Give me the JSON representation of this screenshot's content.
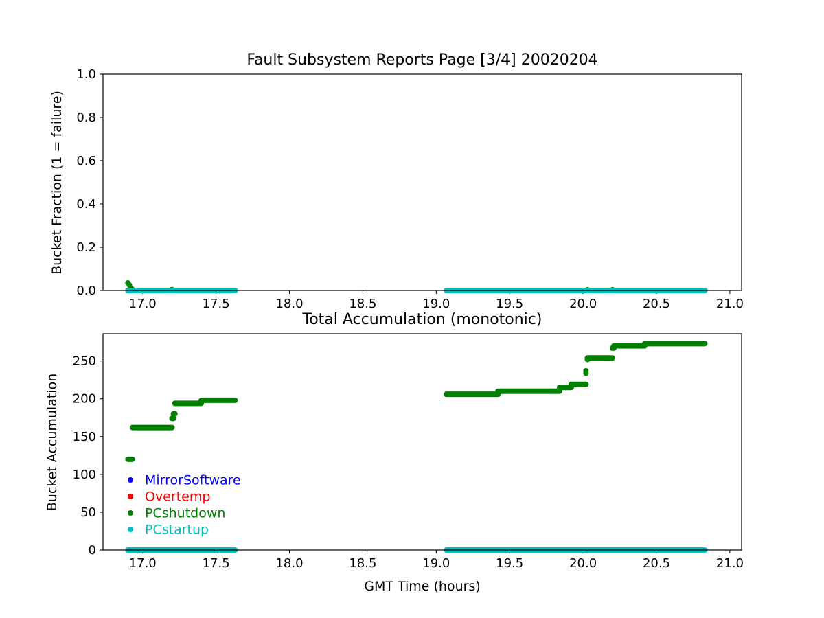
{
  "chart_data": [
    {
      "type": "scatter",
      "title": "Fault Subsystem Reports Page [3/4] 20020204",
      "xlabel": "",
      "ylabel": "Bucket Fraction (1 = failure)",
      "xlim": [
        16.73,
        21.08
      ],
      "ylim": [
        0.0,
        1.0
      ],
      "xticks": [
        17.0,
        17.5,
        18.0,
        18.5,
        19.0,
        19.5,
        20.0,
        20.5,
        21.0
      ],
      "xtick_labels": [
        "17.0",
        "17.5",
        "18.0",
        "18.5",
        "19.0",
        "19.5",
        "20.0",
        "20.5",
        "21.0"
      ],
      "yticks": [
        0.0,
        0.2,
        0.4,
        0.6,
        0.8,
        1.0
      ],
      "ytick_labels": [
        "0.0",
        "0.2",
        "0.4",
        "0.6",
        "0.8",
        "1.0"
      ],
      "grid": false,
      "series": [
        {
          "name": "PCshutdown",
          "color": "#008000",
          "segments": [
            [
              16.9,
              17.63,
              0.0
            ],
            [
              19.07,
              20.83,
              0.0
            ]
          ],
          "points": [
            [
              16.9,
              0.035
            ],
            [
              16.91,
              0.025
            ],
            [
              16.92,
              0.012
            ],
            [
              16.93,
              0.005
            ],
            [
              17.2,
              0.004
            ],
            [
              20.03,
              0.003
            ],
            [
              20.2,
              0.003
            ]
          ]
        },
        {
          "name": "PCstartup",
          "color": "#00bfbf",
          "segments": [
            [
              16.9,
              17.63,
              0.0
            ],
            [
              19.07,
              20.83,
              0.0
            ]
          ],
          "points": []
        }
      ]
    },
    {
      "type": "scatter",
      "title": "Total Accumulation (monotonic)",
      "xlabel": "GMT Time (hours)",
      "ylabel": "Bucket Accumulation",
      "xlim": [
        16.73,
        21.08
      ],
      "ylim": [
        0,
        286
      ],
      "xticks": [
        17.0,
        17.5,
        18.0,
        18.5,
        19.0,
        19.5,
        20.0,
        20.5,
        21.0
      ],
      "xtick_labels": [
        "17.0",
        "17.5",
        "18.0",
        "18.5",
        "19.0",
        "19.5",
        "20.0",
        "20.5",
        "21.0"
      ],
      "yticks": [
        0,
        50,
        100,
        150,
        200,
        250
      ],
      "ytick_labels": [
        "0",
        "50",
        "100",
        "150",
        "200",
        "250"
      ],
      "grid": false,
      "legend": {
        "placement": "center-left",
        "entries": [
          "MirrorSoftware",
          "Overtemp",
          "PCshutdown",
          "PCstartup"
        ]
      },
      "series": [
        {
          "name": "MirrorSoftware",
          "color": "#0000ff",
          "segments": [],
          "points": []
        },
        {
          "name": "Overtemp",
          "color": "#ff0000",
          "segments": [],
          "points": []
        },
        {
          "name": "PCshutdown",
          "color": "#008000",
          "segments": [
            [
              16.9,
              16.93,
              120
            ],
            [
              16.93,
              17.2,
              162
            ],
            [
              17.2,
              17.21,
              174
            ],
            [
              17.21,
              17.22,
              180
            ],
            [
              17.22,
              17.4,
              194
            ],
            [
              17.4,
              17.63,
              198
            ],
            [
              19.07,
              19.42,
              206
            ],
            [
              19.42,
              19.84,
              210
            ],
            [
              19.84,
              19.92,
              215
            ],
            [
              19.92,
              20.02,
              219
            ],
            [
              20.03,
              20.2,
              254
            ],
            [
              20.2,
              20.21,
              267
            ],
            [
              20.21,
              20.42,
              270
            ],
            [
              20.42,
              20.83,
              273
            ]
          ],
          "points": [
            [
              20.02,
              234
            ],
            [
              20.02,
              237
            ],
            [
              20.03,
              252
            ]
          ]
        },
        {
          "name": "PCstartup",
          "color": "#00bfbf",
          "segments": [
            [
              16.9,
              17.63,
              0
            ],
            [
              19.07,
              20.83,
              0
            ]
          ],
          "points": []
        }
      ]
    }
  ]
}
